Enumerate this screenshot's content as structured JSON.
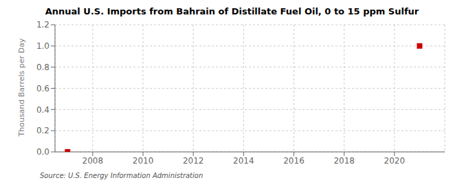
{
  "chart_data": {
    "type": "scatter",
    "title": "Annual U.S. Imports from Bahrain of Distillate Fuel Oil, 0 to 15 ppm Sulfur",
    "ylabel": "Thousand Barrels per Day",
    "annotations": [
      "Source: U.S. Energy Information Administration"
    ],
    "x": [
      2007,
      2021
    ],
    "values": [
      0.0,
      1.0
    ],
    "color": "#cc0000",
    "marker": "square",
    "xlim": [
      2006.5,
      2022.0
    ],
    "ylim": [
      0.0,
      1.2
    ],
    "xticks": [
      2008,
      2010,
      2012,
      2014,
      2016,
      2018,
      2020
    ],
    "yticks": [
      {
        "value": 0,
        "label": "0.0"
      },
      0.2,
      0.4,
      0.6,
      0.8,
      {
        "value": 1,
        "label": "1.0"
      },
      1.2
    ],
    "grid": true
  }
}
